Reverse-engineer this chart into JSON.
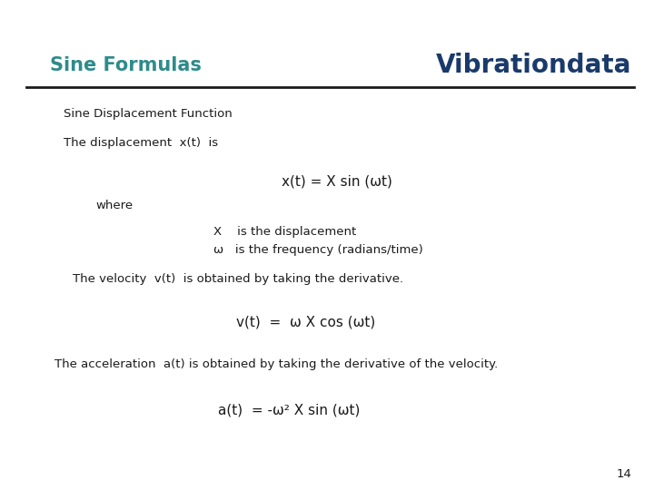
{
  "title_left": "Sine Formulas",
  "title_right": "Vibrationdata",
  "title_left_color": "#2E8B8B",
  "title_right_color": "#1a3a6b",
  "background_color": "#FFFFFF",
  "line_color": "#1a1a1a",
  "page_number": "14",
  "body_font_color": "#1a1a1a",
  "section_heading": "Sine Displacement Function",
  "line1": "The displacement  x(t)  is",
  "formula1": "x(t) = X sin (ωt)",
  "where_label": "where",
  "def1": "X    is the displacement",
  "def2": "ω   is the frequency (radians/time)",
  "line2": "The velocity  v(t)  is obtained by taking the derivative.",
  "formula2": "v(t)  =  ω X cos (ωt)",
  "line3": "The acceleration  a(t) is obtained by taking the derivative of the velocity.",
  "formula3": "a(t)  = -ω² X sin (ωt)"
}
